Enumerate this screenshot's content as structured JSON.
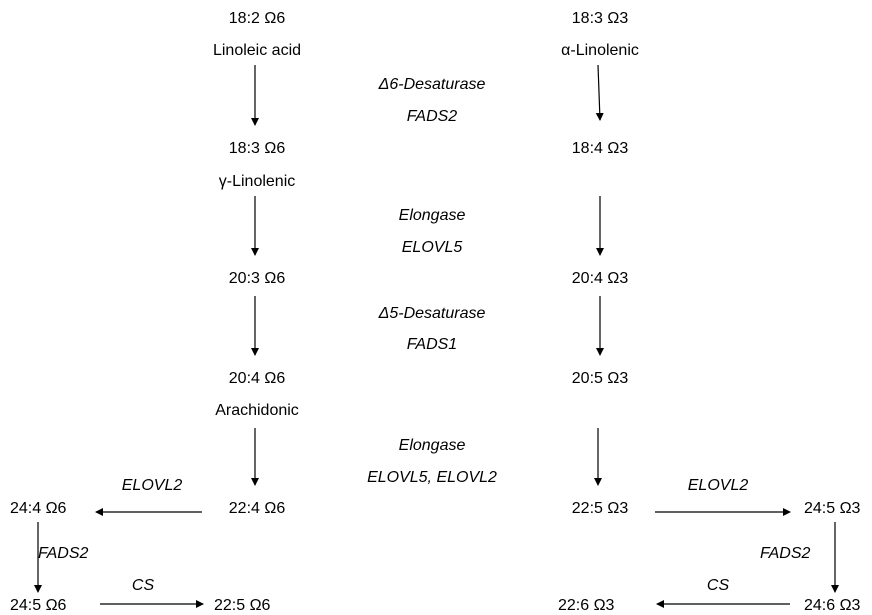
{
  "omega6": {
    "la_formula": "18:2 Ω6",
    "la_name": "Linoleic acid",
    "gla_formula": "18:3 Ω6",
    "gla_name": "γ-Linolenic",
    "dgla_formula": "20:3 Ω6",
    "aa_formula": "20:4 Ω6",
    "aa_name": "Arachidonic",
    "ada_formula": "22:4 Ω6",
    "c24_4_formula": "24:4 Ω6",
    "c24_5_formula": "24:5 Ω6",
    "dpa_formula": "22:5 Ω6"
  },
  "omega3": {
    "ala_formula": "18:3 Ω3",
    "ala_name": "α-Linolenic",
    "sda_formula": "18:4 Ω3",
    "eta_formula": "20:4 Ω3",
    "epa_formula": "20:5 Ω3",
    "dpa_formula": "22:5 Ω3",
    "c24_5_formula": "24:5 Ω3",
    "c24_6_formula": "24:6 Ω3",
    "dha_formula": "22:6 Ω3"
  },
  "enzymes": {
    "step1_name": "Δ6-Desaturase",
    "step1_gene": "FADS2",
    "step2_name": "Elongase",
    "step2_gene": "ELOVL5",
    "step3_name": "Δ5-Desaturase",
    "step3_gene": "FADS1",
    "step4_name": "Elongase",
    "step4_gene": "ELOVL5, ELOVL2",
    "left_elovl2": "ELOVL2",
    "left_fads2": "FADS2",
    "left_cs": "CS",
    "right_elovl2": "ELOVL2",
    "right_fads2": "FADS2",
    "right_cs": "CS"
  }
}
